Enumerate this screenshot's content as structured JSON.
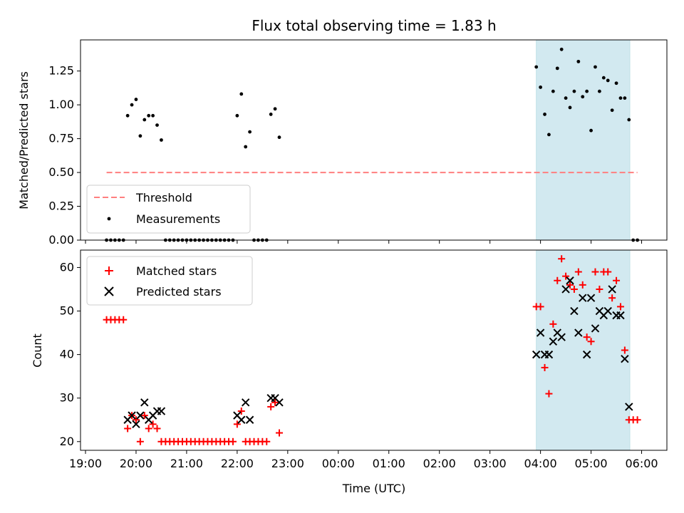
{
  "chart_data": [
    {
      "type": "scatter",
      "title": "Flux total observing time = 1.83 h",
      "xlabel": "",
      "ylabel": "Matched/Predicted stars",
      "xlim": [
        "19:00",
        "06:30"
      ],
      "ylim": [
        0,
        1.48
      ],
      "yticks": [
        0.0,
        0.25,
        0.5,
        0.75,
        1.0,
        1.25
      ],
      "ytick_labels": [
        "0.00",
        "0.25",
        "0.50",
        "0.75",
        "1.00",
        "1.25"
      ],
      "legend": {
        "position": "lower-left",
        "entries": [
          "Threshold",
          "Measurements"
        ]
      },
      "shaded_span": {
        "start": "03:55",
        "end": "05:46",
        "color": "#d2e9f0"
      },
      "threshold": {
        "name": "Threshold",
        "value": 0.5,
        "x_start": "19:25",
        "x_end": "05:55",
        "color": "#ff7f7f"
      },
      "series": [
        {
          "name": "Measurements",
          "color": "#000000",
          "points": [
            [
              "19:25",
              0.0
            ],
            [
              "19:30",
              0.0
            ],
            [
              "19:35",
              0.0
            ],
            [
              "19:40",
              0.0
            ],
            [
              "19:45",
              0.0
            ],
            [
              "19:50",
              0.92
            ],
            [
              "19:55",
              1.0
            ],
            [
              "20:00",
              1.04
            ],
            [
              "20:05",
              0.77
            ],
            [
              "20:10",
              0.89
            ],
            [
              "20:15",
              0.92
            ],
            [
              "20:20",
              0.92
            ],
            [
              "20:25",
              0.85
            ],
            [
              "20:30",
              0.74
            ],
            [
              "20:35",
              0.0
            ],
            [
              "20:40",
              0.0
            ],
            [
              "20:45",
              0.0
            ],
            [
              "20:50",
              0.0
            ],
            [
              "20:55",
              0.0
            ],
            [
              "21:00",
              0.0
            ],
            [
              "21:05",
              0.0
            ],
            [
              "21:10",
              0.0
            ],
            [
              "21:15",
              0.0
            ],
            [
              "21:20",
              0.0
            ],
            [
              "21:25",
              0.0
            ],
            [
              "21:30",
              0.0
            ],
            [
              "21:35",
              0.0
            ],
            [
              "21:40",
              0.0
            ],
            [
              "21:45",
              0.0
            ],
            [
              "21:50",
              0.0
            ],
            [
              "21:55",
              0.0
            ],
            [
              "22:00",
              0.92
            ],
            [
              "22:05",
              1.08
            ],
            [
              "22:10",
              0.69
            ],
            [
              "22:15",
              0.8
            ],
            [
              "22:20",
              0.0
            ],
            [
              "22:25",
              0.0
            ],
            [
              "22:30",
              0.0
            ],
            [
              "22:35",
              0.0
            ],
            [
              "22:40",
              0.93
            ],
            [
              "22:45",
              0.97
            ],
            [
              "22:50",
              0.76
            ],
            [
              "03:55",
              1.28
            ],
            [
              "04:00",
              1.13
            ],
            [
              "04:05",
              0.93
            ],
            [
              "04:10",
              0.78
            ],
            [
              "04:15",
              1.1
            ],
            [
              "04:20",
              1.27
            ],
            [
              "04:25",
              1.41
            ],
            [
              "04:30",
              1.05
            ],
            [
              "04:35",
              0.98
            ],
            [
              "04:40",
              1.1
            ],
            [
              "04:45",
              1.32
            ],
            [
              "04:50",
              1.06
            ],
            [
              "04:55",
              1.1
            ],
            [
              "05:00",
              0.81
            ],
            [
              "05:05",
              1.28
            ],
            [
              "05:10",
              1.1
            ],
            [
              "05:15",
              1.2
            ],
            [
              "05:20",
              1.18
            ],
            [
              "05:25",
              0.96
            ],
            [
              "05:30",
              1.16
            ],
            [
              "05:35",
              1.05
            ],
            [
              "05:40",
              1.05
            ],
            [
              "05:45",
              0.89
            ],
            [
              "05:50",
              0.0
            ],
            [
              "05:55",
              0.0
            ]
          ]
        }
      ]
    },
    {
      "type": "scatter",
      "title": "",
      "xlabel": "Time (UTC)",
      "ylabel": "Count",
      "xlim": [
        "19:00",
        "06:30"
      ],
      "ylim": [
        18,
        64
      ],
      "xtick_labels": [
        "19:00",
        "20:00",
        "21:00",
        "22:00",
        "23:00",
        "00:00",
        "01:00",
        "02:00",
        "03:00",
        "04:00",
        "05:00",
        "06:00"
      ],
      "yticks": [
        20,
        30,
        40,
        50,
        60
      ],
      "ytick_labels": [
        "20",
        "30",
        "40",
        "50",
        "60"
      ],
      "legend": {
        "position": "top-left",
        "entries": [
          "Matched stars",
          "Predicted stars"
        ]
      },
      "shaded_span": {
        "start": "03:55",
        "end": "05:46",
        "color": "#d2e9f0"
      },
      "series": [
        {
          "name": "Matched stars",
          "marker": "plus",
          "color": "#ff0000",
          "points": [
            [
              "19:25",
              48
            ],
            [
              "19:30",
              48
            ],
            [
              "19:35",
              48
            ],
            [
              "19:40",
              48
            ],
            [
              "19:45",
              48
            ],
            [
              "19:50",
              23
            ],
            [
              "19:55",
              26
            ],
            [
              "20:00",
              25
            ],
            [
              "20:05",
              20
            ],
            [
              "20:10",
              26
            ],
            [
              "20:15",
              23
            ],
            [
              "20:20",
              24
            ],
            [
              "20:25",
              23
            ],
            [
              "20:30",
              20
            ],
            [
              "20:35",
              20
            ],
            [
              "20:40",
              20
            ],
            [
              "20:45",
              20
            ],
            [
              "20:50",
              20
            ],
            [
              "20:55",
              20
            ],
            [
              "21:00",
              20
            ],
            [
              "21:05",
              20
            ],
            [
              "21:10",
              20
            ],
            [
              "21:15",
              20
            ],
            [
              "21:20",
              20
            ],
            [
              "21:25",
              20
            ],
            [
              "21:30",
              20
            ],
            [
              "21:35",
              20
            ],
            [
              "21:40",
              20
            ],
            [
              "21:45",
              20
            ],
            [
              "21:50",
              20
            ],
            [
              "21:55",
              20
            ],
            [
              "22:00",
              24
            ],
            [
              "22:05",
              27
            ],
            [
              "22:10",
              20
            ],
            [
              "22:15",
              20
            ],
            [
              "22:20",
              20
            ],
            [
              "22:25",
              20
            ],
            [
              "22:30",
              20
            ],
            [
              "22:35",
              20
            ],
            [
              "22:40",
              28
            ],
            [
              "22:45",
              29
            ],
            [
              "22:50",
              22
            ],
            [
              "03:55",
              51
            ],
            [
              "04:00",
              51
            ],
            [
              "04:05",
              37
            ],
            [
              "04:10",
              31
            ],
            [
              "04:15",
              47
            ],
            [
              "04:20",
              57
            ],
            [
              "04:25",
              62
            ],
            [
              "04:30",
              58
            ],
            [
              "04:35",
              56
            ],
            [
              "04:40",
              55
            ],
            [
              "04:45",
              59
            ],
            [
              "04:50",
              56
            ],
            [
              "04:55",
              44
            ],
            [
              "05:00",
              43
            ],
            [
              "05:05",
              59
            ],
            [
              "05:10",
              55
            ],
            [
              "05:15",
              59
            ],
            [
              "05:20",
              59
            ],
            [
              "05:25",
              53
            ],
            [
              "05:30",
              57
            ],
            [
              "05:35",
              51
            ],
            [
              "05:40",
              41
            ],
            [
              "05:45",
              25
            ],
            [
              "05:50",
              25
            ],
            [
              "05:55",
              25
            ]
          ]
        },
        {
          "name": "Predicted stars",
          "marker": "x",
          "color": "#000000",
          "points": [
            [
              "19:50",
              25
            ],
            [
              "19:55",
              26
            ],
            [
              "20:00",
              24
            ],
            [
              "20:05",
              26
            ],
            [
              "20:10",
              29
            ],
            [
              "20:15",
              25
            ],
            [
              "20:20",
              26
            ],
            [
              "20:25",
              27
            ],
            [
              "20:30",
              27
            ],
            [
              "22:00",
              26
            ],
            [
              "22:05",
              25
            ],
            [
              "22:10",
              29
            ],
            [
              "22:15",
              25
            ],
            [
              "22:40",
              30
            ],
            [
              "22:45",
              30
            ],
            [
              "22:50",
              29
            ],
            [
              "03:55",
              40
            ],
            [
              "04:00",
              45
            ],
            [
              "04:05",
              40
            ],
            [
              "04:10",
              40
            ],
            [
              "04:15",
              43
            ],
            [
              "04:20",
              45
            ],
            [
              "04:25",
              44
            ],
            [
              "04:30",
              55
            ],
            [
              "04:35",
              57
            ],
            [
              "04:40",
              50
            ],
            [
              "04:45",
              45
            ],
            [
              "04:50",
              53
            ],
            [
              "04:55",
              40
            ],
            [
              "05:00",
              53
            ],
            [
              "05:05",
              46
            ],
            [
              "05:10",
              50
            ],
            [
              "05:15",
              49
            ],
            [
              "05:20",
              50
            ],
            [
              "05:25",
              55
            ],
            [
              "05:30",
              49
            ],
            [
              "05:35",
              49
            ],
            [
              "05:40",
              39
            ],
            [
              "05:45",
              28
            ]
          ]
        }
      ]
    }
  ]
}
